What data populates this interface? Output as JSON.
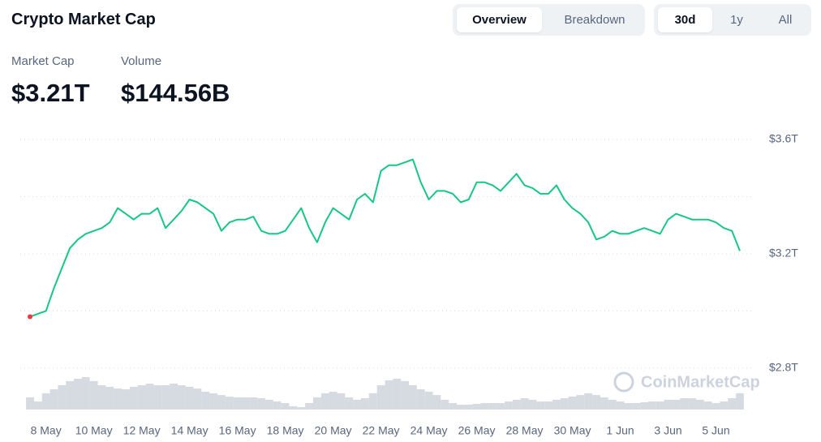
{
  "header": {
    "title": "Crypto Market Cap",
    "view_tabs": [
      "Overview",
      "Breakdown"
    ],
    "range_tabs": [
      "30d",
      "1y",
      "All"
    ]
  },
  "stats": [
    {
      "label": "Market Cap",
      "value": "$3.21T"
    },
    {
      "label": "Volume",
      "value": "$144.56B"
    }
  ],
  "watermark": "CoinMarketCap",
  "chart_data": {
    "type": "line",
    "categories": [
      null,
      null,
      "8 May",
      null,
      null,
      null,
      null,
      null,
      "10 May",
      null,
      null,
      null,
      null,
      null,
      "12 May",
      null,
      null,
      null,
      null,
      null,
      "14 May",
      null,
      null,
      null,
      null,
      null,
      "16 May",
      null,
      null,
      null,
      null,
      null,
      "18 May",
      null,
      null,
      null,
      null,
      null,
      "20 May",
      null,
      null,
      null,
      null,
      null,
      "22 May",
      null,
      null,
      null,
      null,
      null,
      "24 May",
      null,
      null,
      null,
      null,
      null,
      "26 May",
      null,
      null,
      null,
      null,
      null,
      "28 May",
      null,
      null,
      null,
      null,
      null,
      "30 May",
      null,
      null,
      null,
      null,
      null,
      "1 Jun",
      null,
      null,
      null,
      null,
      null,
      "3 Jun",
      null,
      null,
      null,
      null,
      null,
      "5 Jun",
      null,
      null,
      null
    ],
    "series": [
      {
        "type": "line",
        "color": "#16c784",
        "values": [
          2.98,
          2.99,
          3.0,
          3.08,
          3.15,
          3.22,
          3.25,
          3.27,
          3.28,
          3.29,
          3.31,
          3.36,
          3.34,
          3.32,
          3.34,
          3.34,
          3.36,
          3.29,
          3.32,
          3.35,
          3.39,
          3.38,
          3.36,
          3.34,
          3.28,
          3.31,
          3.32,
          3.32,
          3.33,
          3.28,
          3.27,
          3.27,
          3.28,
          3.32,
          3.36,
          3.29,
          3.24,
          3.31,
          3.36,
          3.34,
          3.32,
          3.39,
          3.41,
          3.38,
          3.49,
          3.51,
          3.51,
          3.52,
          3.53,
          3.45,
          3.39,
          3.42,
          3.42,
          3.41,
          3.38,
          3.39,
          3.45,
          3.45,
          3.44,
          3.42,
          3.45,
          3.48,
          3.44,
          3.43,
          3.41,
          3.41,
          3.44,
          3.39,
          3.36,
          3.34,
          3.31,
          3.25,
          3.26,
          3.28,
          3.27,
          3.27,
          3.28,
          3.29,
          3.28,
          3.27,
          3.32,
          3.34,
          3.33,
          3.32,
          3.32,
          3.32,
          3.31,
          3.29,
          3.28,
          3.21
        ]
      },
      {
        "type": "bar",
        "axis": "y2",
        "color": "#cfd3dc",
        "values": [
          62,
          41,
          83,
          103,
          124,
          145,
          157,
          165,
          145,
          124,
          116,
          107,
          103,
          116,
          124,
          132,
          124,
          124,
          132,
          124,
          116,
          107,
          91,
          83,
          74,
          66,
          62,
          62,
          62,
          58,
          50,
          41,
          33,
          17,
          12,
          33,
          62,
          83,
          91,
          83,
          62,
          50,
          58,
          83,
          124,
          149,
          157,
          145,
          124,
          103,
          91,
          74,
          50,
          33,
          25,
          25,
          29,
          33,
          33,
          33,
          41,
          50,
          58,
          50,
          41,
          41,
          50,
          58,
          66,
          74,
          83,
          74,
          62,
          50,
          41,
          33,
          33,
          37,
          41,
          41,
          50,
          50,
          58,
          58,
          50,
          41,
          33,
          41,
          58,
          83
        ]
      }
    ],
    "ylim": [
      2.655,
      3.634
    ],
    "yticks": [
      {
        "value": 2.8,
        "label": "$2.8T"
      },
      {
        "value": 3.2,
        "label": "$3.2T"
      },
      {
        "value": 3.6,
        "label": "$3.6T"
      }
    ],
    "ygrid": [
      3.0,
      3.4
    ],
    "y2lim": [
      0,
      1425
    ],
    "low_marker_color": "#ea3943",
    "grid": true
  }
}
